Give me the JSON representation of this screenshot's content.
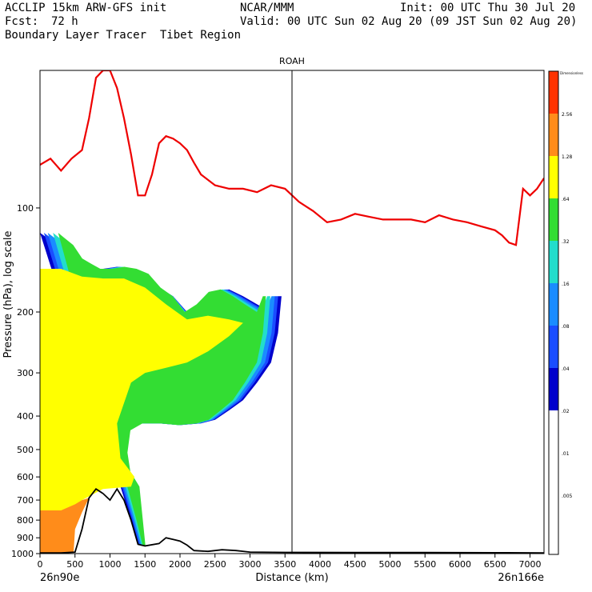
{
  "header": {
    "model": "ACCLIP 15km ARW-GFS init",
    "center": "NCAR/MMM",
    "init": "Init: 00 UTC Thu 30 Jul 20",
    "fcst_label": "Fcst:",
    "fcst_value": "72 h",
    "valid": "Valid: 00 UTC Sun 02 Aug 20 (09 JST Sun 02 Aug 20)",
    "subtitle": "Boundary Layer Tracer  Tibet Region"
  },
  "chart_data": {
    "type": "contour-cross-section",
    "title": "ROAH",
    "xlabel": "Distance (km)",
    "ylabel": "Pressure (hPa), log scale",
    "x_start_label": "26n90e",
    "x_end_label": "26n166e",
    "xlim": [
      0,
      7200
    ],
    "ylim_hpa": [
      1000,
      40
    ],
    "x_ticks": [
      0,
      500,
      1000,
      1500,
      2000,
      2500,
      3000,
      3500,
      4000,
      4500,
      5000,
      5500,
      6000,
      6500,
      7000
    ],
    "y_ticks": [
      100,
      200,
      300,
      400,
      500,
      600,
      700,
      800,
      900,
      1000
    ],
    "marker_line_km": 3600,
    "legend": {
      "title": "Dimensionless",
      "levels": [
        "2.56",
        "1.28",
        ".64",
        ".32",
        ".16",
        ".08",
        ".04",
        ".02",
        ".01",
        ".005"
      ],
      "colors": [
        "#ff3300",
        "#ff8c1a",
        "#ffff00",
        "#33dd33",
        "#22ddcc",
        "#1a8cff",
        "#1a4dff",
        "#0000cc",
        "#ffffff"
      ]
    },
    "tropopause_line": {
      "name": "tropopause",
      "color": "#ee0000",
      "points": [
        [
          0,
          75
        ],
        [
          150,
          72
        ],
        [
          300,
          78
        ],
        [
          450,
          72
        ],
        [
          600,
          68
        ],
        [
          700,
          55
        ],
        [
          800,
          42
        ],
        [
          900,
          40
        ],
        [
          1000,
          40
        ],
        [
          1100,
          45
        ],
        [
          1200,
          55
        ],
        [
          1300,
          70
        ],
        [
          1400,
          92
        ],
        [
          1500,
          92
        ],
        [
          1600,
          80
        ],
        [
          1700,
          65
        ],
        [
          1800,
          62
        ],
        [
          1900,
          63
        ],
        [
          2000,
          65
        ],
        [
          2100,
          68
        ],
        [
          2200,
          74
        ],
        [
          2300,
          80
        ],
        [
          2500,
          86
        ],
        [
          2700,
          88
        ],
        [
          2900,
          88
        ],
        [
          3100,
          90
        ],
        [
          3300,
          86
        ],
        [
          3500,
          88
        ],
        [
          3700,
          96
        ],
        [
          3900,
          102
        ],
        [
          4100,
          110
        ],
        [
          4300,
          108
        ],
        [
          4500,
          104
        ],
        [
          4700,
          106
        ],
        [
          4900,
          108
        ],
        [
          5100,
          108
        ],
        [
          5300,
          108
        ],
        [
          5500,
          110
        ],
        [
          5700,
          105
        ],
        [
          5900,
          108
        ],
        [
          6100,
          110
        ],
        [
          6300,
          113
        ],
        [
          6500,
          116
        ],
        [
          6600,
          120
        ],
        [
          6700,
          126
        ],
        [
          6800,
          128
        ],
        [
          6900,
          88
        ],
        [
          7000,
          92
        ],
        [
          7100,
          88
        ],
        [
          7200,
          82
        ]
      ]
    },
    "terrain_line": {
      "name": "terrain",
      "color": "#000000",
      "points": [
        [
          0,
          995
        ],
        [
          300,
          995
        ],
        [
          500,
          990
        ],
        [
          600,
          850
        ],
        [
          700,
          690
        ],
        [
          800,
          650
        ],
        [
          900,
          670
        ],
        [
          1000,
          700
        ],
        [
          1100,
          650
        ],
        [
          1200,
          700
        ],
        [
          1300,
          800
        ],
        [
          1400,
          940
        ],
        [
          1500,
          950
        ],
        [
          1700,
          935
        ],
        [
          1800,
          900
        ],
        [
          1900,
          910
        ],
        [
          2000,
          920
        ],
        [
          2100,
          945
        ],
        [
          2200,
          980
        ],
        [
          2400,
          985
        ],
        [
          2600,
          975
        ],
        [
          2800,
          980
        ],
        [
          3000,
          990
        ],
        [
          3500,
          992
        ],
        [
          4500,
          993
        ],
        [
          5500,
          993
        ],
        [
          6500,
          994
        ],
        [
          7200,
          995
        ]
      ]
    },
    "tracer_envelope": {
      "name": "tracer outer contour (.01)",
      "points": [
        [
          0,
          118
        ],
        [
          100,
          122
        ],
        [
          250,
          128
        ],
        [
          400,
          140
        ],
        [
          550,
          145
        ],
        [
          700,
          150
        ],
        [
          900,
          150
        ],
        [
          1100,
          148
        ],
        [
          1300,
          150
        ],
        [
          1500,
          155
        ],
        [
          1700,
          170
        ],
        [
          1900,
          180
        ],
        [
          2100,
          200
        ],
        [
          2300,
          190
        ],
        [
          2500,
          175
        ],
        [
          2700,
          172
        ],
        [
          2900,
          180
        ],
        [
          3100,
          190
        ],
        [
          3300,
          200
        ],
        [
          3400,
          180
        ],
        [
          3450,
          180
        ],
        [
          3400,
          230
        ],
        [
          3300,
          280
        ],
        [
          3100,
          320
        ],
        [
          2900,
          360
        ],
        [
          2700,
          385
        ],
        [
          2500,
          410
        ],
        [
          2300,
          420
        ],
        [
          2000,
          425
        ],
        [
          1700,
          420
        ],
        [
          1400,
          420
        ],
        [
          1200,
          440
        ],
        [
          1150,
          510
        ],
        [
          1200,
          580
        ],
        [
          1350,
          640
        ],
        [
          1450,
          950
        ],
        [
          1400,
          940
        ],
        [
          1300,
          800
        ]
      ]
    },
    "tracer_yellow_region": {
      "name": "tracer .32 contour",
      "points": [
        [
          0,
          150
        ],
        [
          300,
          150
        ],
        [
          600,
          158
        ],
        [
          900,
          160
        ],
        [
          1200,
          160
        ],
        [
          1500,
          170
        ],
        [
          1800,
          190
        ],
        [
          2100,
          210
        ],
        [
          2400,
          205
        ],
        [
          2700,
          210
        ],
        [
          2900,
          215
        ],
        [
          2700,
          235
        ],
        [
          2400,
          260
        ],
        [
          2100,
          280
        ],
        [
          1800,
          290
        ],
        [
          1500,
          300
        ],
        [
          1300,
          320
        ],
        [
          1100,
          420
        ],
        [
          1150,
          530
        ],
        [
          1350,
          600
        ],
        [
          1300,
          640
        ],
        [
          900,
          650
        ],
        [
          600,
          700
        ],
        [
          300,
          800
        ],
        [
          0,
          800
        ]
      ]
    },
    "tracer_orange_region": {
      "name": "tracer .64 contour",
      "points": [
        [
          0,
          750
        ],
        [
          300,
          750
        ],
        [
          500,
          720
        ],
        [
          600,
          700
        ],
        [
          700,
          690
        ],
        [
          600,
          760
        ],
        [
          500,
          850
        ],
        [
          480,
          990
        ],
        [
          300,
          995
        ],
        [
          0,
          995
        ]
      ]
    }
  }
}
